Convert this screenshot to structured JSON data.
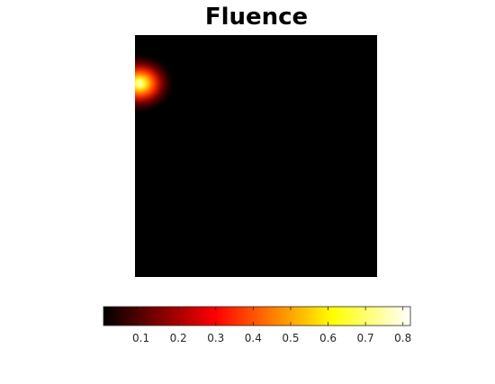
{
  "chart_data": {
    "type": "heatmap",
    "title": "Fluence",
    "xlabel": "",
    "ylabel": "",
    "colormap": "hot",
    "background_color": "#000000",
    "hotspot": {
      "x": 0.02,
      "y": 0.2,
      "peak_value": 0.82
    },
    "colorbar": {
      "orientation": "horizontal",
      "range": [
        0,
        0.82
      ],
      "ticks": [
        0.1,
        0.2,
        0.3,
        0.4,
        0.5,
        0.6,
        0.7,
        0.8
      ],
      "tick_labels": [
        "0.1",
        "0.2",
        "0.3",
        "0.4",
        "0.5",
        "0.6",
        "0.7",
        "0.8"
      ]
    }
  }
}
